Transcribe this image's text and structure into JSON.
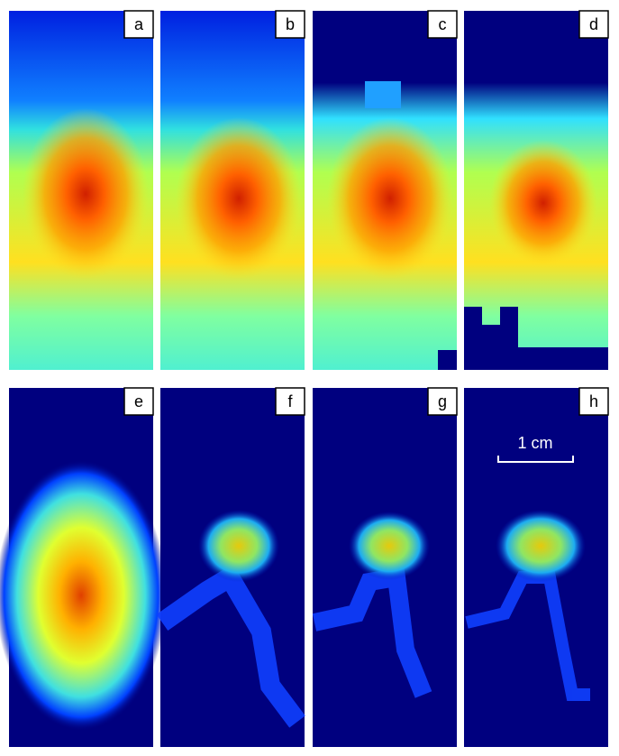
{
  "panels": [
    {
      "label": "a"
    },
    {
      "label": "b"
    },
    {
      "label": "c"
    },
    {
      "label": "d"
    },
    {
      "label": "e"
    },
    {
      "label": "f"
    },
    {
      "label": "g"
    },
    {
      "label": "h"
    }
  ],
  "scale_bar": {
    "label": "1 cm"
  }
}
